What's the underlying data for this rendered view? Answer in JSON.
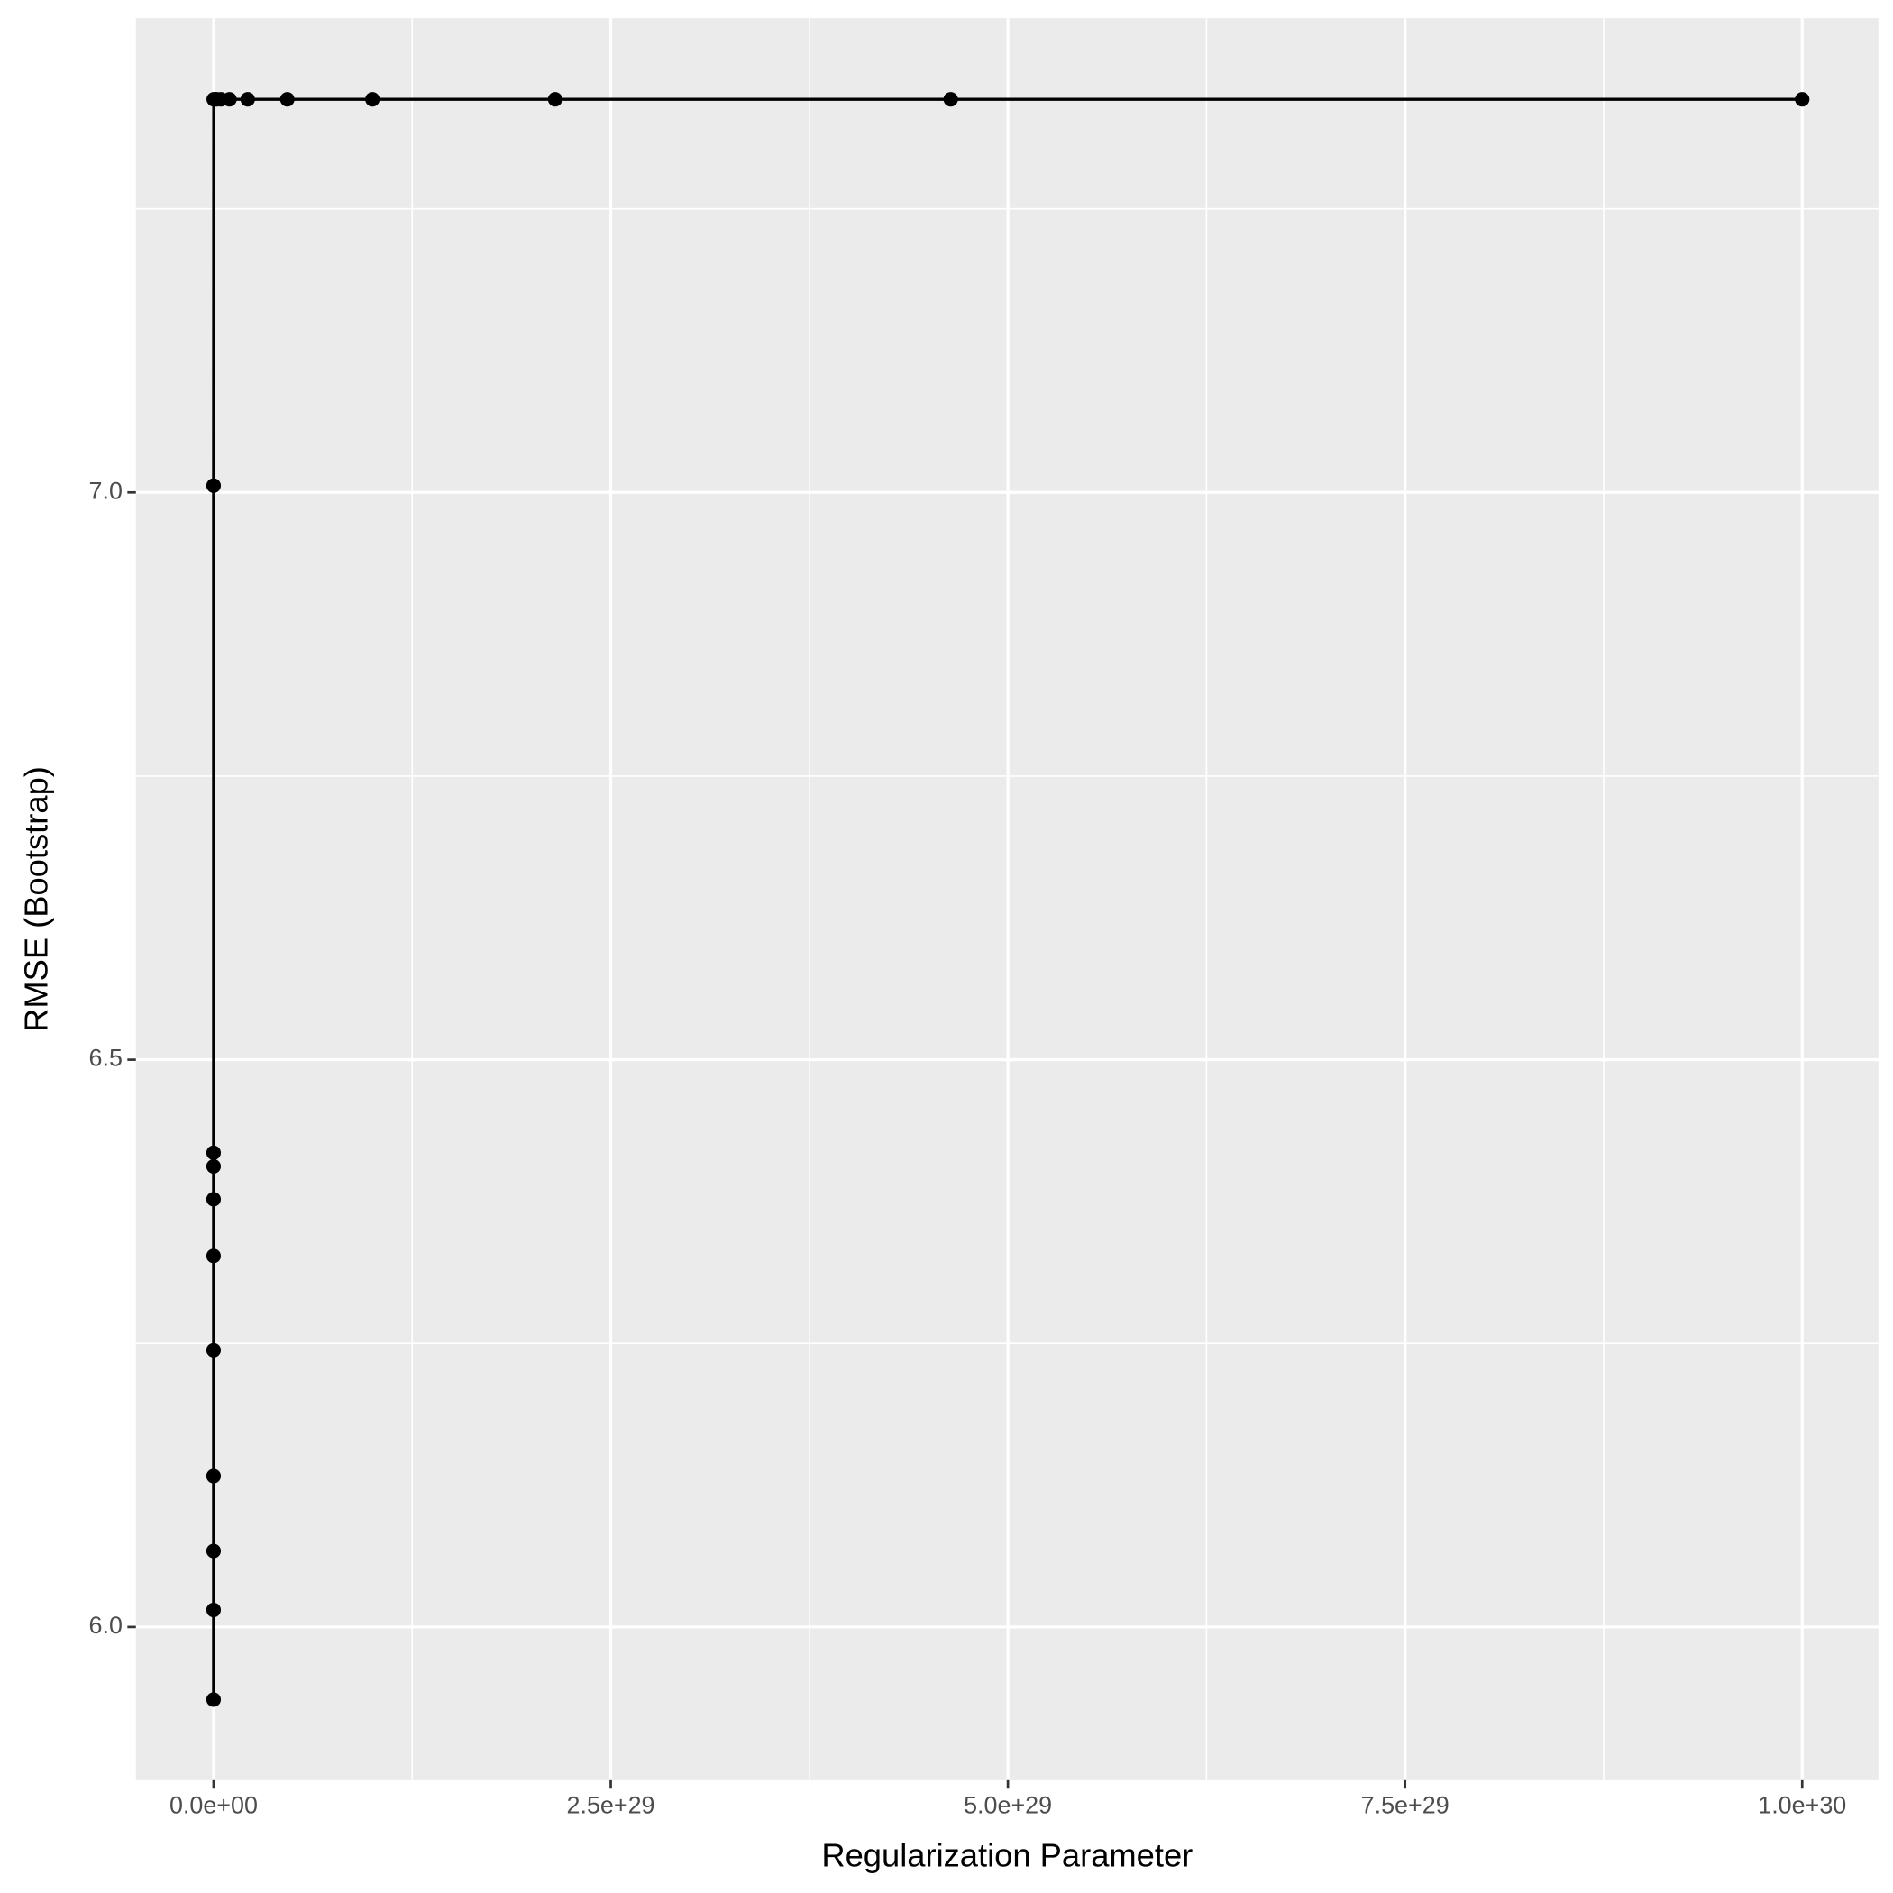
{
  "chart_data": {
    "type": "line",
    "x_label": "Regularization Parameter",
    "y_label": "RMSE (Bootstrap)",
    "x": [
      0.1,
      0.5,
      1,
      2,
      5,
      10,
      20,
      50,
      100,
      1000,
      1e+26,
      1e+27,
      2.15e+27,
      4.64e+27,
      1e+28,
      2.15e+28,
      4.64e+28,
      1e+29,
      2.15e+29,
      4.64e+29,
      1e+30
    ],
    "series": [
      {
        "name": "RMSE",
        "color": "#000000",
        "values": [
          5.936,
          6.015,
          6.067,
          6.133,
          6.244,
          6.327,
          6.377,
          6.406,
          6.418,
          7.006,
          7.3465,
          7.3465,
          7.3465,
          7.3465,
          7.3465,
          7.3465,
          7.3465,
          7.3465,
          7.3465,
          7.3465,
          7.3465
        ]
      }
    ],
    "xlim": [
      -4.89e+28,
      1.048e+30
    ],
    "ylim": [
      5.865,
      7.418
    ],
    "xticks": [
      {
        "value": 0,
        "label": "0.0e+00"
      },
      {
        "value": 2.5e+29,
        "label": "2.5e+29"
      },
      {
        "value": 5e+29,
        "label": "5.0e+29"
      },
      {
        "value": 7.5e+29,
        "label": "7.5e+29"
      },
      {
        "value": 1e+30,
        "label": "1.0e+30"
      }
    ],
    "yticks": [
      {
        "value": 6,
        "label": "6.0"
      },
      {
        "value": 6.5,
        "label": "6.5"
      },
      {
        "value": 7,
        "label": "7.0"
      }
    ],
    "grid": true,
    "panel_color": "#ebebeb"
  }
}
